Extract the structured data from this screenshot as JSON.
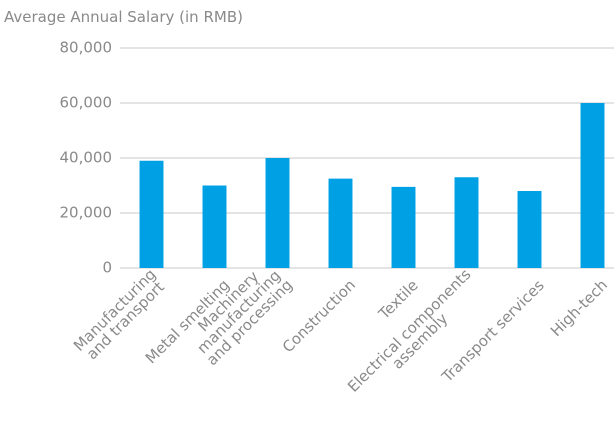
{
  "chart_data": {
    "type": "bar",
    "y_axis_label": "Average Annual Salary (in RMB)",
    "categories": [
      "Manufacturing\nand transport",
      "Metal smelting",
      "Machinery\nmanufacturing\nand processing",
      "Construction",
      "Textile",
      "Electrical components\nassembly",
      "Transport services",
      "High-tech"
    ],
    "values": [
      39000,
      30000,
      40000,
      32500,
      29500,
      33000,
      28000,
      60000
    ],
    "color": "#00a0e4",
    "ylim": [
      0,
      80000
    ],
    "yticks": [
      0,
      {
        "value": 20000,
        "label": "20,000"
      },
      {
        "value": 40000,
        "label": "40,000"
      },
      {
        "value": 60000,
        "label": "60,000"
      },
      {
        "value": 80000,
        "label": "80,000"
      }
    ],
    "grid": true
  }
}
